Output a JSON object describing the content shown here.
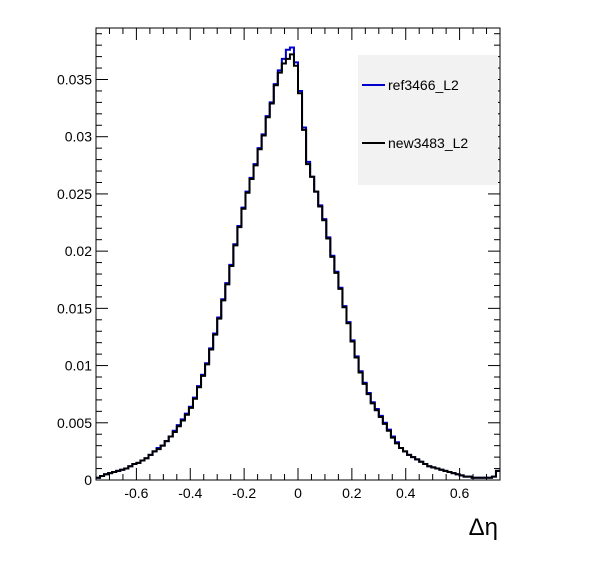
{
  "chart_data": {
    "type": "line",
    "style": "step",
    "xlabel": "Δη",
    "xlim": [
      -0.75,
      0.75
    ],
    "ylim": [
      0,
      0.0395
    ],
    "x_ticks": [
      -0.6,
      -0.4,
      -0.2,
      0,
      0.2,
      0.4,
      0.6
    ],
    "x_tick_labels": [
      "-0.6",
      "-0.4",
      "-0.2",
      "0",
      "0.2",
      "0.4",
      "0.6"
    ],
    "y_ticks": [
      0,
      0.005,
      0.01,
      0.015,
      0.02,
      0.025,
      0.03,
      0.035
    ],
    "y_tick_labels": [
      "0",
      "0.005",
      "0.01",
      "0.015",
      "0.02",
      "0.025",
      "0.03",
      "0.035"
    ],
    "grid": false,
    "legend_position": "top-right",
    "bins": {
      "count": 100,
      "low": -0.75,
      "high": 0.75
    },
    "series": [
      {
        "name": "ref3466_L2",
        "color": "#0000cc",
        "values": [
          0.0002,
          0.00035,
          0.0005,
          0.0006,
          0.0007,
          0.0008,
          0.0009,
          0.001,
          0.0012,
          0.0014,
          0.0015,
          0.0017,
          0.0019,
          0.0022,
          0.0025,
          0.0028,
          0.003,
          0.0034,
          0.0038,
          0.0043,
          0.0048,
          0.0053,
          0.0058,
          0.0064,
          0.0072,
          0.0082,
          0.0092,
          0.0102,
          0.0115,
          0.0128,
          0.0142,
          0.0158,
          0.0172,
          0.0188,
          0.0206,
          0.0222,
          0.0238,
          0.0252,
          0.0264,
          0.0276,
          0.029,
          0.0302,
          0.0318,
          0.033,
          0.0346,
          0.0358,
          0.0368,
          0.0376,
          0.0378,
          0.0365,
          0.034,
          0.0308,
          0.0278,
          0.0265,
          0.0252,
          0.024,
          0.0228,
          0.0212,
          0.0196,
          0.0182,
          0.0168,
          0.0152,
          0.0138,
          0.0122,
          0.0108,
          0.0095,
          0.0085,
          0.0076,
          0.0068,
          0.0062,
          0.0056,
          0.005,
          0.0044,
          0.0038,
          0.0033,
          0.0028,
          0.0025,
          0.0022,
          0.002,
          0.0018,
          0.0016,
          0.0014,
          0.0012,
          0.0011,
          0.001,
          0.0009,
          0.0008,
          0.0007,
          0.0006,
          0.0005,
          0.0004,
          0.0003,
          0.0003,
          0.0002,
          0.0002,
          0.0002,
          0.0002,
          0.0002,
          0.0003,
          0.0008
        ]
      },
      {
        "name": "new3483_L2",
        "color": "#000000",
        "values": [
          0.0002,
          0.00035,
          0.0005,
          0.0006,
          0.0007,
          0.0008,
          0.0009,
          0.001,
          0.0012,
          0.0014,
          0.0015,
          0.0017,
          0.0019,
          0.0022,
          0.0025,
          0.0027,
          0.003,
          0.0034,
          0.0038,
          0.0042,
          0.0047,
          0.0052,
          0.0057,
          0.0063,
          0.0071,
          0.0081,
          0.0091,
          0.0101,
          0.0114,
          0.0127,
          0.0141,
          0.0157,
          0.0171,
          0.0187,
          0.0205,
          0.0221,
          0.0237,
          0.0251,
          0.0263,
          0.0275,
          0.0289,
          0.0301,
          0.0317,
          0.0329,
          0.0345,
          0.0356,
          0.0364,
          0.0368,
          0.0372,
          0.0362,
          0.0338,
          0.0306,
          0.0276,
          0.0265,
          0.0252,
          0.0239,
          0.0227,
          0.0211,
          0.0195,
          0.0181,
          0.0167,
          0.0151,
          0.0137,
          0.0121,
          0.0107,
          0.0094,
          0.0084,
          0.0075,
          0.0067,
          0.0061,
          0.0055,
          0.0049,
          0.0043,
          0.0037,
          0.0032,
          0.0028,
          0.0025,
          0.0022,
          0.002,
          0.0018,
          0.0016,
          0.0014,
          0.0012,
          0.0011,
          0.001,
          0.0009,
          0.0008,
          0.0007,
          0.0006,
          0.0005,
          0.0004,
          0.0003,
          0.0003,
          0.0002,
          0.0002,
          0.0002,
          0.0002,
          0.0002,
          0.0003,
          0.0008
        ]
      }
    ]
  }
}
